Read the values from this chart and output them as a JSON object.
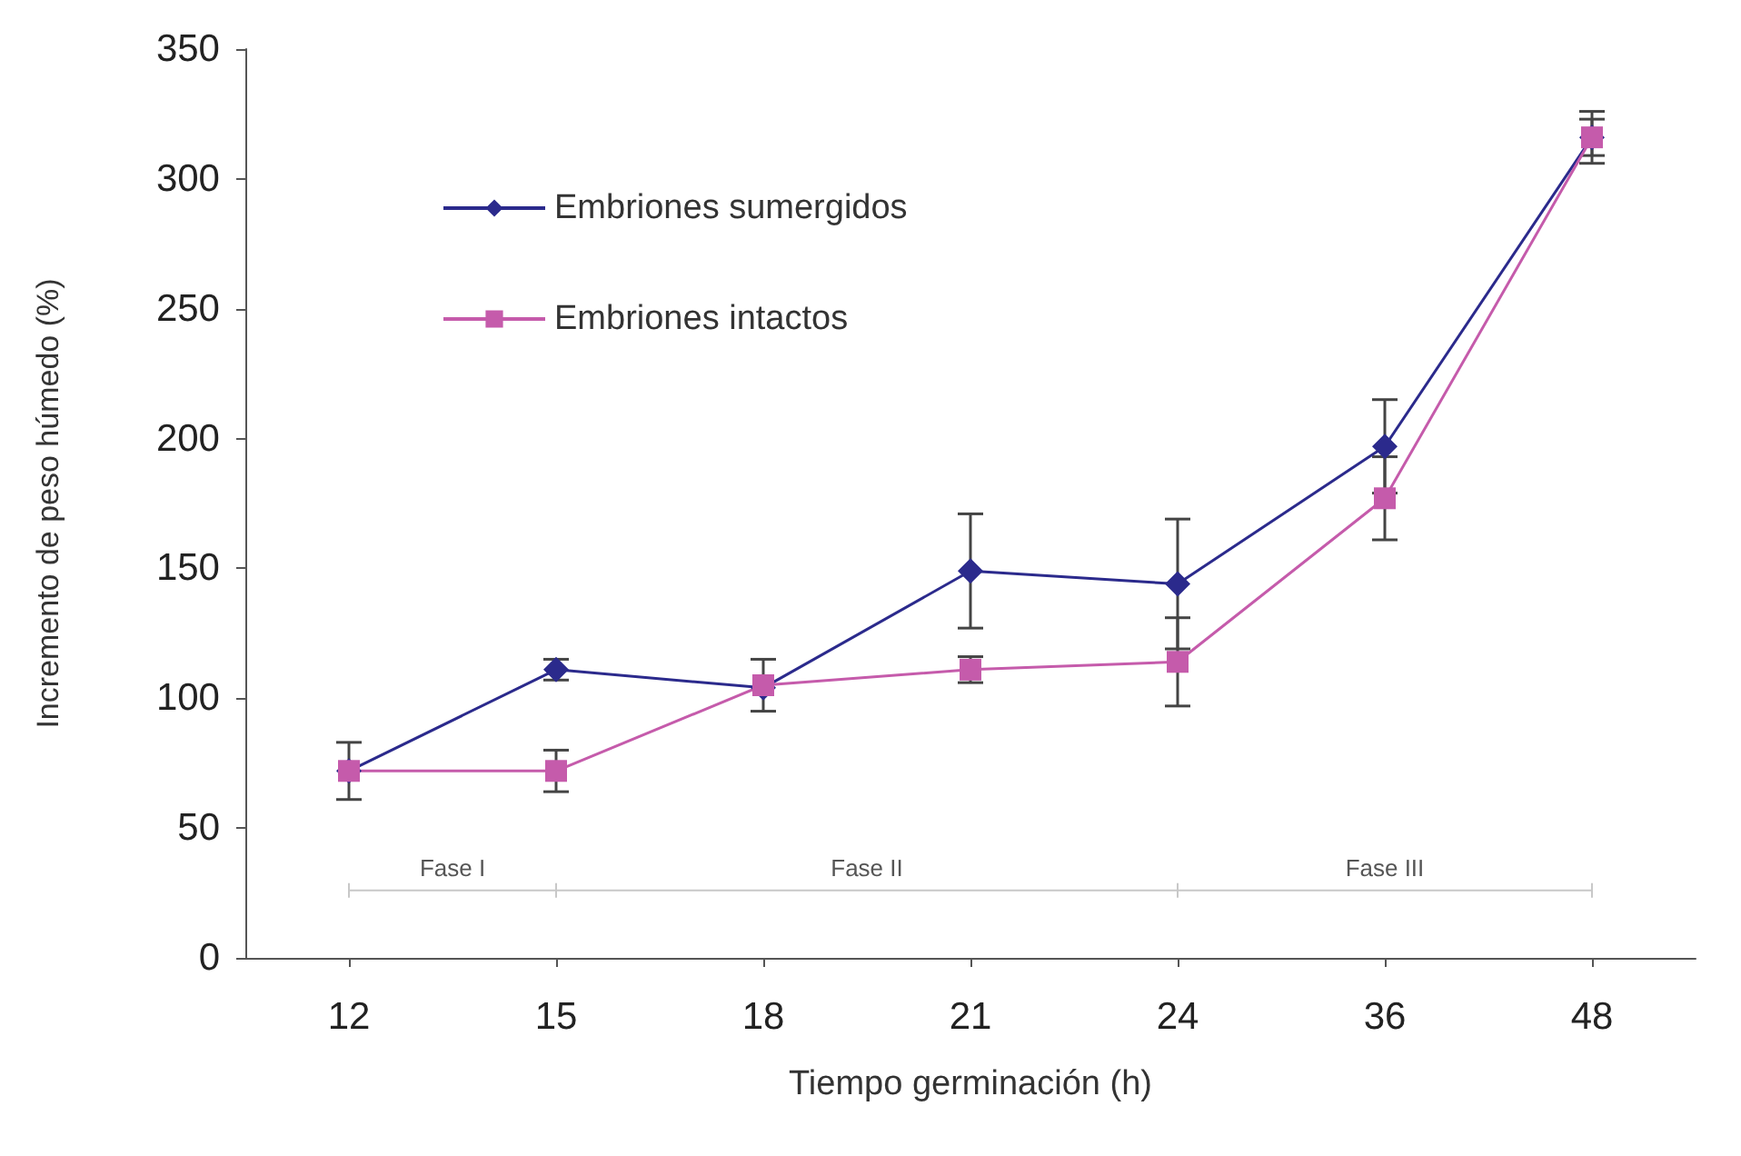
{
  "chart_data": {
    "type": "line",
    "xlabel": "Tiempo germinación (h)",
    "ylabel": "Incremento de peso húmedo (%)",
    "categories": [
      "12",
      "15",
      "18",
      "21",
      "24",
      "36",
      "48"
    ],
    "series": [
      {
        "name": "Embriones sumergidos",
        "color": "#2b2a8c",
        "marker": "diamond",
        "values": [
          72,
          111,
          104,
          149,
          144,
          197,
          316
        ],
        "errors": [
          null,
          4,
          null,
          22,
          25,
          18,
          10
        ]
      },
      {
        "name": "Embriones intactos",
        "color": "#c55bab",
        "marker": "square",
        "values": [
          72,
          72,
          105,
          111,
          114,
          177,
          316
        ],
        "errors": [
          11,
          8,
          10,
          5,
          17,
          16,
          7
        ]
      }
    ],
    "ylim": [
      0,
      350
    ],
    "yticks": [
      0,
      50,
      100,
      150,
      200,
      250,
      300,
      350
    ],
    "grid": false,
    "legend": "top left",
    "ref_lines": [
      {
        "axis": "y",
        "value": 26,
        "color": "#c8c8c8"
      }
    ],
    "annotations": [
      "Fase I",
      "Fase II",
      "Fase III"
    ]
  }
}
